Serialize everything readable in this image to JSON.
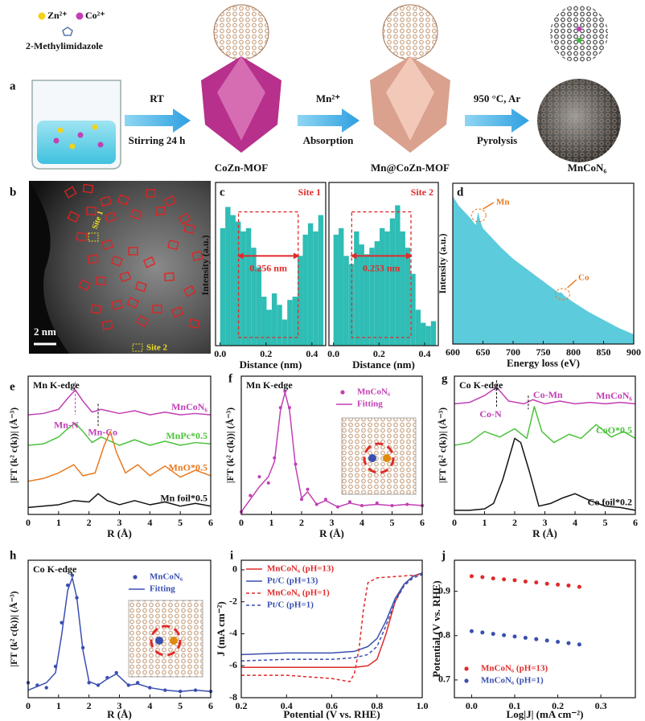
{
  "panels": {
    "a": {
      "label": "a",
      "zn": "Zn²⁺",
      "co": "Co²⁺",
      "linker": "2-Methylimidazole",
      "steps": [
        {
          "top": "RT",
          "bottom": "Stirring 24 h"
        },
        {
          "top": "Mn²⁺",
          "bottom": "Absorption"
        },
        {
          "top": "950 °C, Ar",
          "bottom": "Pyrolysis"
        }
      ],
      "products": [
        "CoZn-MOF",
        "Mn@CoZn-MOF",
        "MnCoN₆"
      ]
    },
    "b": {
      "label": "b",
      "site1": "Site 1",
      "site2": "Site 2",
      "scale": "2 nm"
    },
    "c": {
      "label": "c",
      "ylabel": "Intensity (a.u.)",
      "color": "#2fbdb5",
      "sites": [
        {
          "name": "Site 1",
          "distance": "0.256 nm",
          "xlabel": "Distance (nm)",
          "xlim": [
            -0.02,
            0.46
          ],
          "ylim": [
            0,
            1
          ],
          "xticks": [
            {
              "value": 0,
              "label": "0.0"
            },
            0.2,
            0.4
          ],
          "bins": [
            0,
            0.0225,
            0.045,
            0.0675,
            0.09,
            0.1125,
            0.135,
            0.1575,
            0.18,
            0.2025,
            0.225,
            0.2475,
            0.27,
            0.2925,
            0.315,
            0.3375,
            0.36,
            0.3825,
            0.405,
            0.4275,
            0.45
          ],
          "values": [
            0.72,
            0.85,
            0.8,
            0.76,
            0.7,
            0.72,
            0.6,
            0.48,
            0.3,
            0.22,
            0.32,
            0.25,
            0.16,
            0.28,
            0.3,
            0.55,
            0.68,
            0.75,
            0.7,
            0.8
          ]
        },
        {
          "name": "Site 2",
          "distance": "0.253 nm",
          "xlabel": "Distance (nm)",
          "xlim": [
            -0.02,
            0.46
          ],
          "ylim": [
            0,
            1
          ],
          "xticks": [
            {
              "value": 0,
              "label": "0.0"
            },
            0.2,
            0.4
          ],
          "bins": [
            0,
            0.0225,
            0.045,
            0.0675,
            0.09,
            0.1125,
            0.135,
            0.1575,
            0.18,
            0.2025,
            0.225,
            0.2475,
            0.27,
            0.2925,
            0.315,
            0.3375,
            0.36,
            0.3825,
            0.405,
            0.4275,
            0.45
          ],
          "values": [
            0.68,
            0.72,
            0.55,
            0.5,
            0.7,
            0.62,
            0.56,
            0.6,
            0.64,
            0.72,
            0.7,
            0.78,
            0.86,
            0.7,
            0.6,
            0.44,
            0.22,
            0.14,
            0.12,
            0.15
          ]
        }
      ]
    },
    "d": {
      "label": "d",
      "ylabel": "Intensity (a.u.)",
      "xlabel": "Energy loss (eV)",
      "xlim": [
        600,
        900
      ],
      "ylim": [
        0,
        1
      ],
      "xticks": [
        600,
        650,
        700,
        750,
        800,
        850,
        900
      ],
      "annotations": [
        "Mn",
        "Co"
      ],
      "series": [
        {
          "style": "area",
          "color": "#5ccbdc",
          "x": [
            600,
            610,
            620,
            630,
            638,
            642,
            646,
            650,
            660,
            680,
            700,
            725,
            750,
            775,
            780,
            785,
            800,
            825,
            850,
            875,
            900
          ],
          "values": [
            0.92,
            0.86,
            0.82,
            0.78,
            0.74,
            0.82,
            0.76,
            0.72,
            0.68,
            0.6,
            0.53,
            0.46,
            0.39,
            0.32,
            0.32,
            0.3,
            0.26,
            0.2,
            0.15,
            0.1,
            0.06
          ]
        }
      ]
    },
    "e": {
      "label": "e",
      "title": "Mn K-edge",
      "ylabel": "|FT (k² c(k))| (Å⁻³)",
      "xlabel": "R (Å)",
      "xlim": [
        0,
        6
      ],
      "ylim": [
        0,
        1
      ],
      "xticks": [
        0,
        1,
        2,
        3,
        4,
        5,
        6
      ],
      "annotations": [
        "Mn-N",
        "Mn-Co"
      ],
      "series": [
        {
          "name": "MnCoN₆",
          "style": "line",
          "color": "#c23fb5",
          "x": [
            0,
            0.5,
            1,
            1.3,
            1.55,
            1.8,
            2.1,
            2.4,
            3,
            3.5,
            4,
            4.5,
            5,
            5.5,
            6
          ],
          "values": [
            0.72,
            0.73,
            0.76,
            0.84,
            0.9,
            0.82,
            0.74,
            0.76,
            0.73,
            0.75,
            0.72,
            0.74,
            0.72,
            0.73,
            0.72
          ]
        },
        {
          "name": "MnPc*0.5",
          "style": "line",
          "color": "#4cc23c",
          "x": [
            0,
            0.5,
            1,
            1.3,
            1.55,
            1.8,
            2.1,
            2.4,
            3,
            3.5,
            4,
            4.5,
            5,
            5.5,
            6
          ],
          "values": [
            0.5,
            0.51,
            0.56,
            0.62,
            0.66,
            0.6,
            0.52,
            0.56,
            0.5,
            0.54,
            0.5,
            0.53,
            0.5,
            0.52,
            0.51
          ]
        },
        {
          "name": "MnO*0.5",
          "style": "line",
          "color": "#e87a20",
          "x": [
            0,
            0.5,
            1,
            1.5,
            1.8,
            2.2,
            2.5,
            2.7,
            2.9,
            3.2,
            3.6,
            4,
            4.5,
            5,
            5.5,
            6
          ],
          "values": [
            0.24,
            0.26,
            0.3,
            0.36,
            0.28,
            0.3,
            0.5,
            0.6,
            0.45,
            0.3,
            0.36,
            0.28,
            0.35,
            0.27,
            0.32,
            0.28
          ]
        },
        {
          "name": "Mn foil*0.5",
          "style": "line",
          "color": "#111111",
          "x": [
            0,
            0.5,
            1,
            1.5,
            2,
            2.3,
            2.6,
            3,
            3.5,
            4,
            4.5,
            5,
            5.5,
            6
          ],
          "values": [
            0.05,
            0.06,
            0.07,
            0.1,
            0.09,
            0.15,
            0.1,
            0.07,
            0.1,
            0.07,
            0.09,
            0.06,
            0.08,
            0.06
          ]
        }
      ]
    },
    "f": {
      "label": "f",
      "title": "Mn K-edge",
      "ylabel": "|FT (k² c(k))| (Å⁻³)",
      "xlabel": "R (Å)",
      "xlim": [
        0,
        6
      ],
      "ylim": [
        0,
        1.1
      ],
      "xticks": [
        0,
        1,
        2,
        3,
        4,
        5,
        6
      ],
      "series": [
        {
          "name": "MnCoN₆",
          "style": "dots",
          "color": "#c23fb5",
          "x": [
            0,
            0.3,
            0.6,
            0.9,
            1.1,
            1.3,
            1.45,
            1.6,
            1.8,
            2,
            2.2,
            2.5,
            2.8,
            3.2,
            3.6,
            4,
            4.5,
            5,
            5.5,
            6
          ],
          "values": [
            0.02,
            0.15,
            0.3,
            0.25,
            0.45,
            0.85,
            0.98,
            0.85,
            0.4,
            0.12,
            0.2,
            0.08,
            0.12,
            0.06,
            0.1,
            0.07,
            0.09,
            0.07,
            0.08,
            0.07
          ]
        },
        {
          "name": "Fitting",
          "style": "line",
          "color": "#c23fb5",
          "x": [
            0,
            0.3,
            0.6,
            0.9,
            1.1,
            1.3,
            1.45,
            1.6,
            1.8,
            2,
            2.2,
            2.5,
            2.8,
            3.2,
            3.6,
            4,
            4.5,
            5,
            5.5,
            6
          ],
          "values": [
            0.02,
            0.12,
            0.22,
            0.3,
            0.42,
            0.83,
            0.97,
            0.83,
            0.38,
            0.13,
            0.18,
            0.08,
            0.11,
            0.06,
            0.09,
            0.07,
            0.08,
            0.07,
            0.08,
            0.07
          ]
        }
      ]
    },
    "g": {
      "label": "g",
      "title": "Co K-edge",
      "ylabel": "|FT (k² c(k))| (Å⁻³)",
      "xlabel": "R (Å)",
      "xlim": [
        0,
        6
      ],
      "ylim": [
        0,
        1
      ],
      "xticks": [
        0,
        1,
        2,
        3,
        4,
        5,
        6
      ],
      "annotations": [
        "Co-N",
        "Co-Mn"
      ],
      "series": [
        {
          "name": "MnCoN₆",
          "style": "line",
          "color": "#c23fb5",
          "x": [
            0,
            0.5,
            1,
            1.4,
            1.8,
            2.3,
            2.6,
            3,
            3.5,
            4,
            4.5,
            5,
            5.5,
            6
          ],
          "values": [
            0.8,
            0.81,
            0.86,
            0.92,
            0.82,
            0.8,
            0.83,
            0.8,
            0.82,
            0.8,
            0.81,
            0.8,
            0.81,
            0.8
          ]
        },
        {
          "name": "CoO*0.5",
          "style": "line",
          "color": "#4cc23c",
          "x": [
            0,
            0.5,
            1,
            1.5,
            2,
            2.4,
            2.65,
            2.9,
            3.3,
            3.8,
            4.2,
            4.7,
            5.2,
            5.6,
            6
          ],
          "values": [
            0.5,
            0.52,
            0.6,
            0.56,
            0.62,
            0.55,
            0.78,
            0.6,
            0.52,
            0.58,
            0.55,
            0.65,
            0.56,
            0.6,
            0.55
          ]
        },
        {
          "name": "Co foil*0.2",
          "style": "line",
          "color": "#111111",
          "x": [
            0,
            0.5,
            1,
            1.3,
            1.6,
            2,
            2.2,
            2.5,
            2.8,
            3.2,
            3.6,
            4,
            4.5,
            5,
            5.5,
            6
          ],
          "values": [
            0.03,
            0.03,
            0.04,
            0.08,
            0.25,
            0.55,
            0.52,
            0.3,
            0.06,
            0.08,
            0.12,
            0.15,
            0.1,
            0.06,
            0.05,
            0.03
          ]
        }
      ]
    },
    "h": {
      "label": "h",
      "title": "Co K-edge",
      "ylabel": "|FT (k² c(k))| (Å⁻³)",
      "xlabel": "R (Å)",
      "xlim": [
        0,
        6
      ],
      "ylim": [
        0,
        1.1
      ],
      "xticks": [
        0,
        1,
        2,
        3,
        4,
        5,
        6
      ],
      "series": [
        {
          "name": "MnCoN₆",
          "style": "dots",
          "color": "#3a4fb0",
          "x": [
            0,
            0.3,
            0.6,
            0.9,
            1.1,
            1.3,
            1.45,
            1.6,
            1.8,
            2,
            2.3,
            2.6,
            2.9,
            3.3,
            3.6,
            4,
            4.5,
            5,
            5.5,
            6
          ],
          "values": [
            0.12,
            0.1,
            0.08,
            0.25,
            0.6,
            0.9,
            0.98,
            0.8,
            0.4,
            0.12,
            0.1,
            0.16,
            0.2,
            0.1,
            0.12,
            0.08,
            0.06,
            0.05,
            0.06,
            0.05
          ]
        },
        {
          "name": "Fitting",
          "style": "line",
          "color": "#3a4fb0",
          "x": [
            0,
            0.3,
            0.6,
            0.9,
            1.1,
            1.3,
            1.45,
            1.6,
            1.8,
            2,
            2.3,
            2.6,
            2.9,
            3.3,
            3.6,
            4,
            4.5,
            5,
            5.5,
            6
          ],
          "values": [
            0.06,
            0.09,
            0.12,
            0.2,
            0.5,
            0.86,
            0.96,
            0.8,
            0.38,
            0.13,
            0.1,
            0.15,
            0.19,
            0.1,
            0.11,
            0.08,
            0.06,
            0.05,
            0.06,
            0.05
          ]
        }
      ]
    },
    "i": {
      "label": "i",
      "ylabel": "J (mA cm⁻²)",
      "xlabel": "Potential (V vs. RHE)",
      "xlim": [
        0.2,
        1
      ],
      "ylim": [
        -8,
        0.6
      ],
      "xticks": [
        0.2,
        0.4,
        0.6,
        0.8,
        {
          "value": 1,
          "label": "1.0"
        }
      ],
      "yticks": [
        0,
        -2,
        -4,
        -6,
        -8
      ],
      "series": [
        {
          "name": "MnCoN₆ (pH=13)",
          "style": "line",
          "color": "#e02a2a",
          "x": [
            0.2,
            0.4,
            0.6,
            0.7,
            0.76,
            0.8,
            0.84,
            0.88,
            0.92,
            0.96,
            1
          ],
          "values": [
            -6.1,
            -6.1,
            -6.1,
            -6.1,
            -6,
            -5.6,
            -4,
            -2,
            -0.9,
            -0.4,
            -0.2
          ]
        },
        {
          "name": "Pt/C (pH=13)",
          "style": "line",
          "color": "#3a4fb0",
          "x": [
            0.2,
            0.4,
            0.6,
            0.7,
            0.76,
            0.8,
            0.84,
            0.88,
            0.92,
            0.96,
            1
          ],
          "values": [
            -5.3,
            -5.2,
            -5.2,
            -5.1,
            -4.8,
            -4.3,
            -3.2,
            -1.8,
            -0.9,
            -0.4,
            -0.2
          ]
        },
        {
          "name": "MnCoN₆ (pH=1)",
          "style": "dash",
          "color": "#e02a2a",
          "x": [
            0.2,
            0.4,
            0.6,
            0.68,
            0.7,
            0.72,
            0.74,
            0.76,
            0.8,
            0.9,
            1
          ],
          "values": [
            -6.6,
            -6.6,
            -6.8,
            -7,
            -6.5,
            -5,
            -2.5,
            -0.8,
            -0.5,
            -0.4,
            -0.3
          ]
        },
        {
          "name": "Pt/C (pH=1)",
          "style": "dash",
          "color": "#3a4fb0",
          "x": [
            0.2,
            0.4,
            0.6,
            0.7,
            0.76,
            0.8,
            0.84,
            0.88,
            0.92,
            0.96,
            1
          ],
          "values": [
            -5.7,
            -5.6,
            -5.6,
            -5.5,
            -5.3,
            -4.8,
            -3.5,
            -2,
            -1,
            -0.5,
            -0.3
          ]
        }
      ]
    },
    "j": {
      "label": "j",
      "ylabel": "Potential (V vs. RHE)",
      "xlabel": "Log|J| (mA cm⁻²)",
      "xlim": [
        -0.04,
        0.38
      ],
      "ylim": [
        0.66,
        0.97
      ],
      "xticks": [
        {
          "value": 0,
          "label": "0.0"
        },
        0.1,
        0.2,
        0.3
      ],
      "yticks": [
        0.7,
        0.8,
        0.9
      ],
      "series": [
        {
          "name": "MnCoN₆ (pH=13)",
          "style": "dots",
          "color": "#e02a2a",
          "x": [
            0,
            0.025,
            0.05,
            0.075,
            0.1,
            0.125,
            0.15,
            0.175,
            0.2,
            0.225,
            0.25
          ],
          "values": [
            0.934,
            0.932,
            0.929,
            0.927,
            0.925,
            0.922,
            0.92,
            0.917,
            0.915,
            0.913,
            0.91
          ]
        },
        {
          "name": "MnCoN₆ (pH=1)",
          "style": "dots",
          "color": "#3a4fb0",
          "x": [
            0,
            0.025,
            0.05,
            0.075,
            0.1,
            0.125,
            0.15,
            0.175,
            0.2,
            0.225,
            0.25
          ],
          "values": [
            0.81,
            0.807,
            0.804,
            0.801,
            0.798,
            0.795,
            0.792,
            0.789,
            0.786,
            0.783,
            0.78
          ]
        }
      ]
    }
  }
}
